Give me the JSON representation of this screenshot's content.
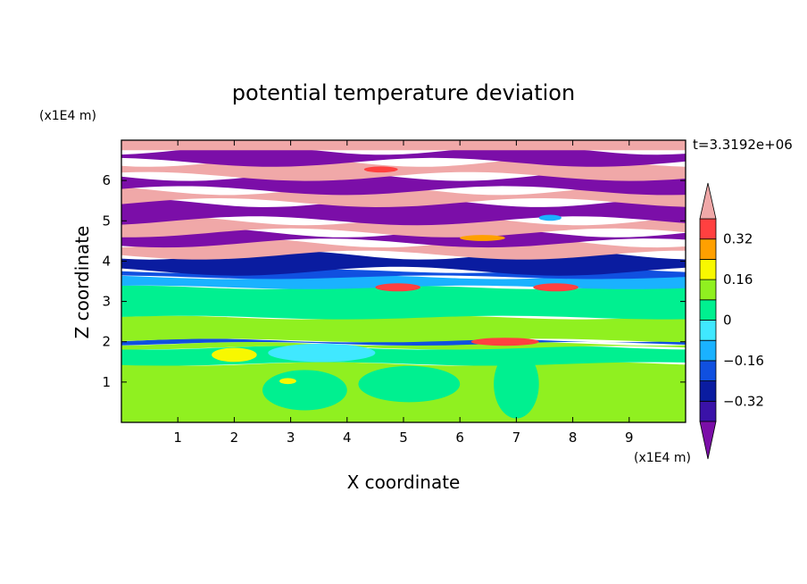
{
  "chart_data": {
    "type": "heatmap",
    "title": "potential temperature deviation",
    "xlabel": "X coordinate",
    "ylabel": "Z coordinate",
    "x_unit": "(x1E4 m)",
    "y_unit": "(x1E4 m)",
    "time_label": "t=3.3192e+06",
    "xlim": [
      0,
      10
    ],
    "ylim": [
      0,
      7
    ],
    "x_ticks": [
      "1",
      "2",
      "3",
      "4",
      "5",
      "6",
      "7",
      "8",
      "9"
    ],
    "y_ticks": [
      "1",
      "2",
      "3",
      "4",
      "5",
      "6"
    ],
    "colorbar": {
      "levels": [
        -0.4,
        -0.32,
        -0.24,
        -0.16,
        -0.08,
        0,
        0.08,
        0.16,
        0.24,
        0.32,
        0.4
      ],
      "tick_labels": [
        "0.32",
        "0.16",
        "0",
        "−0.16",
        "−0.32"
      ],
      "tick_values": [
        0.32,
        0.16,
        0,
        -0.16,
        -0.32
      ],
      "colors": {
        "below": "#7b0ea8",
        "band_-0.4": "#3a12a8",
        "band_-0.32": "#0a1ca0",
        "band_-0.24": "#1050e0",
        "band_-0.16": "#1ab2ff",
        "band_-0.08": "#40e8ff",
        "band_0": "#00f090",
        "band_0.08": "#90f020",
        "band_0.16": "#f8f800",
        "band_0.24": "#ffa000",
        "band_0.32": "#ff4040",
        "above": "#f0a8a8"
      },
      "extend": "both"
    },
    "layers": [
      {
        "z": [
          0,
          1.45
        ],
        "value": 0.1,
        "color": "#90f020"
      },
      {
        "z": [
          1.45,
          1.85
        ],
        "value": 0.05,
        "color": "#00f090"
      },
      {
        "z": [
          1.85,
          1.95
        ],
        "value": 0.1,
        "color": "#90f020"
      },
      {
        "z": [
          1.95,
          2.03
        ],
        "value": -0.2,
        "color": "#1050e0"
      },
      {
        "z": [
          2.03,
          2.6
        ],
        "value": 0.1,
        "color": "#90f020"
      },
      {
        "z": [
          2.6,
          3.35
        ],
        "value": 0.05,
        "color": "#00f090"
      },
      {
        "z": [
          3.35,
          3.6
        ],
        "value": -0.2,
        "color": "#1ab2ff"
      },
      {
        "z": [
          3.6,
          3.75
        ],
        "value": -0.3,
        "color": "#1050e0"
      },
      {
        "z": [
          3.75,
          4.15
        ],
        "value": -0.35,
        "color": "#0a1ca0"
      },
      {
        "z": [
          4.15,
          4.45
        ],
        "value": 0.5,
        "color": "#f0a8a8"
      },
      {
        "z": [
          4.45,
          4.7
        ],
        "value": -0.45,
        "color": "#7b0ea8"
      },
      {
        "z": [
          4.7,
          5.0
        ],
        "value": 0.5,
        "color": "#f0a8a8"
      },
      {
        "z": [
          5.0,
          5.45
        ],
        "value": -0.45,
        "color": "#7b0ea8"
      },
      {
        "z": [
          5.45,
          5.75
        ],
        "value": 0.5,
        "color": "#f0a8a8"
      },
      {
        "z": [
          5.75,
          6.1
        ],
        "value": -0.45,
        "color": "#7b0ea8"
      },
      {
        "z": [
          6.1,
          6.45
        ],
        "value": 0.5,
        "color": "#f0a8a8"
      },
      {
        "z": [
          6.45,
          6.75
        ],
        "value": -0.45,
        "color": "#7b0ea8"
      },
      {
        "z": [
          6.75,
          7.0
        ],
        "value": 0.5,
        "color": "#f0a8a8"
      }
    ],
    "features": [
      {
        "x": [
          1.6,
          2.4
        ],
        "z": [
          1.5,
          1.85
        ],
        "color": "#f8f800"
      },
      {
        "x": [
          2.5,
          4.0
        ],
        "z": [
          0.3,
          1.3
        ],
        "color": "#00f090"
      },
      {
        "x": [
          4.2,
          6.0
        ],
        "z": [
          0.5,
          1.4
        ],
        "color": "#00f090"
      },
      {
        "x": [
          6.6,
          7.4
        ],
        "z": [
          0.1,
          1.8
        ],
        "color": "#00f090"
      },
      {
        "x": [
          2.8,
          3.1
        ],
        "z": [
          0.95,
          1.1
        ],
        "color": "#f8f800"
      },
      {
        "x": [
          2.6,
          4.5
        ],
        "z": [
          1.5,
          1.95
        ],
        "color": "#40e8ff"
      },
      {
        "x": [
          6.2,
          7.4
        ],
        "z": [
          1.9,
          2.1
        ],
        "color": "#ff4040"
      },
      {
        "x": [
          4.5,
          5.3
        ],
        "z": [
          3.25,
          3.45
        ],
        "color": "#ff4040"
      },
      {
        "x": [
          7.3,
          8.1
        ],
        "z": [
          3.25,
          3.45
        ],
        "color": "#ff4040"
      },
      {
        "x": [
          7.4,
          7.8
        ],
        "z": [
          5.0,
          5.15
        ],
        "color": "#1ab2ff"
      },
      {
        "x": [
          4.3,
          4.9
        ],
        "z": [
          6.2,
          6.35
        ],
        "color": "#ff4040"
      },
      {
        "x": [
          6.0,
          6.8
        ],
        "z": [
          4.5,
          4.65
        ],
        "color": "#ffa000"
      }
    ]
  }
}
